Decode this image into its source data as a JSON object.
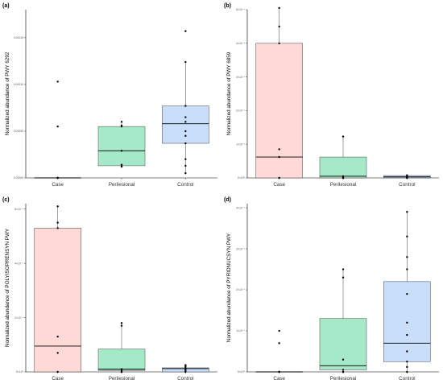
{
  "chart_data": [
    {
      "type": "box",
      "panel_label": "(a)",
      "ylabel": "Normalized abundance of PWY 6292",
      "categories": [
        "Case",
        "Perilesional",
        "Control"
      ],
      "colors": [
        "#ffd9d6",
        "#a6e9c9",
        "#c9defa"
      ],
      "ylim": [
        0,
        0.00018
      ],
      "yticks": [
        0,
        5e-05,
        0.0001,
        0.00015
      ],
      "ytick_labels": [
        "0.00000",
        "0.00005",
        "0.00010",
        "0.00015"
      ],
      "boxes": [
        {
          "category": "Case",
          "q1": 0,
          "median": 0,
          "q3": 0,
          "whisker_low": 0,
          "whisker_high": 0
        },
        {
          "category": "Perilesional",
          "q1": 1.3e-05,
          "median": 2.9e-05,
          "q3": 5.5e-05,
          "whisker_low": 1.2e-05,
          "whisker_high": 6e-05
        },
        {
          "category": "Control",
          "q1": 3.7e-05,
          "median": 5.8e-05,
          "q3": 7.7e-05,
          "whisker_low": 5e-06,
          "whisker_high": 0.000124
        }
      ],
      "points": [
        {
          "category": "Case",
          "values": [
            0,
            0,
            0,
            0,
            5.5e-05,
            0.000103
          ]
        },
        {
          "category": "Perilesional",
          "values": [
            1.2e-05,
            1.4e-05,
            2.9e-05,
            5.5e-05,
            5.6e-05,
            6e-05
          ]
        },
        {
          "category": "Control",
          "values": [
            5e-06,
            1.3e-05,
            2e-05,
            3.7e-05,
            4.5e-05,
            5e-05,
            6e-05,
            6.5e-05,
            7.7e-05,
            0.000124,
            0.000157
          ]
        }
      ]
    },
    {
      "type": "box",
      "panel_label": "(b)",
      "ylabel": "Normalized abundance of PWY 6859",
      "categories": [
        "Case",
        "Perilesional",
        "Control"
      ],
      "colors": [
        "#ffd9d6",
        "#a6e9c9",
        "#c9defa"
      ],
      "ylim": [
        0,
        5e-06
      ],
      "yticks": [
        0,
        1e-06,
        2e-06,
        3e-06,
        4e-06,
        5e-06
      ],
      "ytick_labels": [
        "0×10⁰",
        "1×10⁻⁶",
        "2×10⁻⁶",
        "3×10⁻⁶",
        "4×10⁻⁶",
        "5×10⁻⁶"
      ],
      "boxes": [
        {
          "category": "Case",
          "q1": 0,
          "median": 6.2e-07,
          "q3": 4e-06,
          "whisker_low": 0,
          "whisker_high": 5.05e-06
        },
        {
          "category": "Perilesional",
          "q1": 0,
          "median": 5e-08,
          "q3": 6.2e-07,
          "whisker_low": 0,
          "whisker_high": 1.23e-06
        },
        {
          "category": "Control",
          "q1": 0,
          "median": 3e-08,
          "q3": 7e-08,
          "whisker_low": 0,
          "whisker_high": 1e-07
        }
      ],
      "points": [
        {
          "category": "Case",
          "values": [
            0,
            6.2e-07,
            8.5e-07,
            4e-06,
            4.5e-06,
            5.05e-06
          ]
        },
        {
          "category": "Perilesional",
          "values": [
            0,
            0,
            0,
            5e-08,
            1.23e-06
          ]
        },
        {
          "category": "Control",
          "values": [
            0,
            0,
            0,
            2e-08,
            5e-08,
            8e-08
          ]
        }
      ]
    },
    {
      "type": "box",
      "panel_label": "(c)",
      "ylabel": "Normalized abundance of POLYISOPRENSYN PWY",
      "categories": [
        "Case",
        "Perilesional",
        "Control"
      ],
      "colors": [
        "#ffd9d6",
        "#a6e9c9",
        "#c9defa"
      ],
      "ylim": [
        0,
        6.2e-06
      ],
      "yticks": [
        0,
        2e-06,
        4e-06,
        6e-06
      ],
      "ytick_labels": [
        "0×10⁰",
        "2×10⁻⁶",
        "4×10⁻⁶",
        "6×10⁻⁶"
      ],
      "boxes": [
        {
          "category": "Case",
          "q1": 0,
          "median": 9.5e-07,
          "q3": 5.3e-06,
          "whisker_low": 0,
          "whisker_high": 6.1e-06
        },
        {
          "category": "Perilesional",
          "q1": 5e-08,
          "median": 1e-07,
          "q3": 8.4e-07,
          "whisker_low": 0,
          "whisker_high": 1.8e-06
        },
        {
          "category": "Control",
          "q1": 0,
          "median": 1.2e-07,
          "q3": 1.5e-07,
          "whisker_low": 0,
          "whisker_high": 2.5e-07
        }
      ],
      "points": [
        {
          "category": "Case",
          "values": [
            0,
            7e-07,
            1.3e-06,
            5.3e-06,
            5.5e-06,
            6.1e-06
          ]
        },
        {
          "category": "Perilesional",
          "values": [
            0,
            0,
            5e-08,
            1e-07,
            1.7e-06,
            1.8e-06
          ]
        },
        {
          "category": "Control",
          "values": [
            0,
            5e-08,
            1e-07,
            1.5e-07,
            2e-07,
            2.5e-07
          ]
        }
      ]
    },
    {
      "type": "box",
      "panel_label": "(d)",
      "ylabel": "Normalized abundance of PYRIDNUCSYN PWY",
      "categories": [
        "Case",
        "Perilesional",
        "Control"
      ],
      "colors": [
        "#ffd9d6",
        "#a6e9c9",
        "#c9defa"
      ],
      "ylim": [
        0,
        4.1e-06
      ],
      "yticks": [
        0,
        1e-06,
        2e-06,
        3e-06,
        4e-06
      ],
      "ytick_labels": [
        "0×10⁰",
        "1×10⁻⁶",
        "2×10⁻⁶",
        "3×10⁻⁶",
        "4×10⁻⁶"
      ],
      "boxes": [
        {
          "category": "Case",
          "q1": 0,
          "median": 0,
          "q3": 0,
          "whisker_low": 0,
          "whisker_high": 0
        },
        {
          "category": "Perilesional",
          "q1": 5e-08,
          "median": 1.5e-07,
          "q3": 1.3e-06,
          "whisker_low": 0,
          "whisker_high": 2.5e-06
        },
        {
          "category": "Control",
          "q1": 2.5e-07,
          "median": 7e-07,
          "q3": 2.2e-06,
          "whisker_low": 0,
          "whisker_high": 3.9e-06
        }
      ],
      "points": [
        {
          "category": "Case",
          "values": [
            0,
            0,
            0,
            7e-07,
            1e-06
          ]
        },
        {
          "category": "Perilesional",
          "values": [
            0,
            5e-08,
            3e-07,
            2.3e-06,
            2.5e-06
          ]
        },
        {
          "category": "Control",
          "values": [
            0,
            1.2e-07,
            2.5e-07,
            5e-07,
            9e-07,
            1.2e-06,
            1.9e-06,
            2.5e-06,
            2.8e-06,
            3.3e-06,
            3.9e-06
          ]
        }
      ]
    }
  ]
}
